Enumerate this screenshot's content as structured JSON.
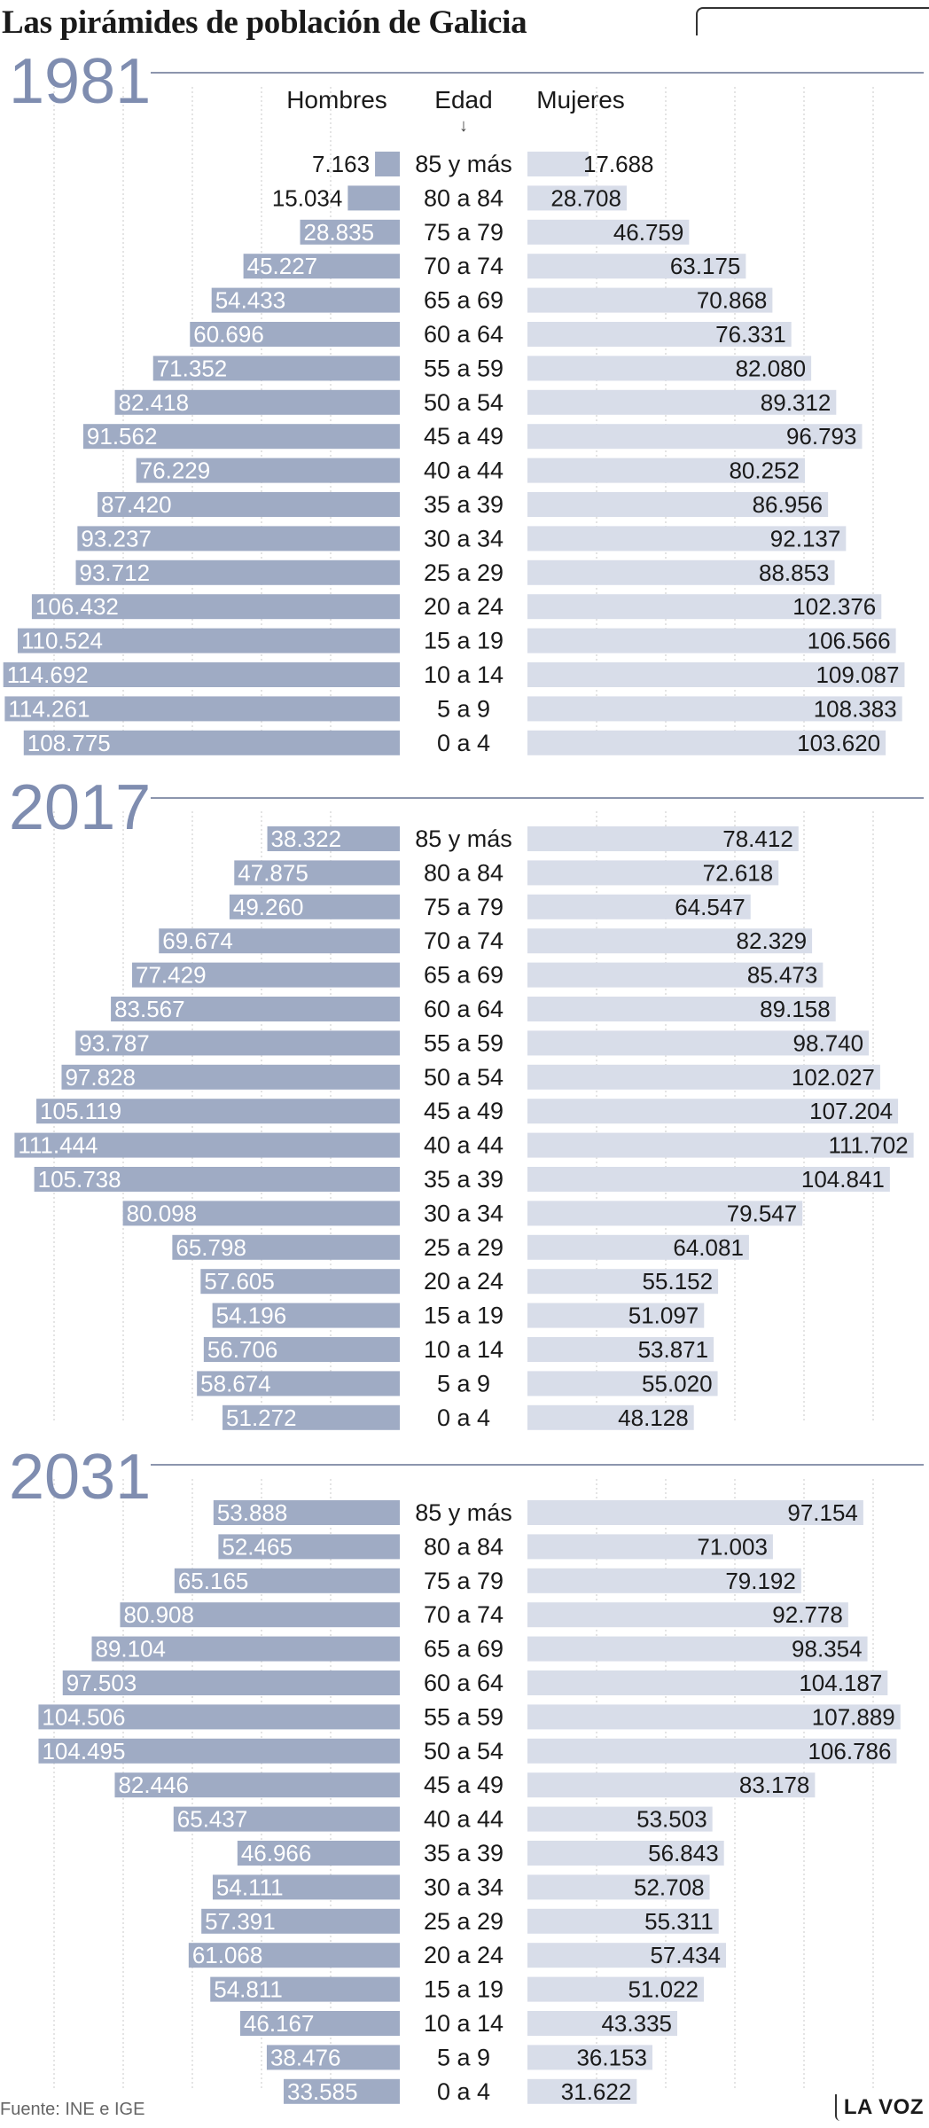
{
  "header": {
    "title": "Las pirámides de población de Galicia"
  },
  "footer": {
    "source": "Fuente: INE e IGE",
    "brand": "LA VOZ"
  },
  "colors": {
    "men": "#9fabc4",
    "women": "#d8dde9",
    "year": "#7f8db0",
    "rule": "#8c95ad"
  },
  "chart_data": {
    "type": "bar",
    "orientation": "horizontal",
    "layout": "population-pyramid",
    "column_headers": {
      "left": "Hombres",
      "center": "Edad",
      "right": "Mujeres"
    },
    "categories": [
      "85 y más",
      "80 a 84",
      "75 a 79",
      "70 a 74",
      "65 a 69",
      "60 a 64",
      "55 a 59",
      "50 a 54",
      "45 a 49",
      "40 a 44",
      "35 a 39",
      "30 a 34",
      "25 a 29",
      "20 a 24",
      "15 a 19",
      "10 a 14",
      "5 a 9",
      "0 a 4"
    ],
    "grid": true,
    "panels": [
      {
        "year": "1981",
        "series": [
          {
            "name": "Hombres",
            "values": [
              "7.163",
              "15.034",
              "28.835",
              "45.227",
              "54.433",
              "60.696",
              "71.352",
              "82.418",
              "91.562",
              "76.229",
              "87.420",
              "93.237",
              "93.712",
              "106.432",
              "110.524",
              "114.692",
              "114.261",
              "108.775"
            ]
          },
          {
            "name": "Mujeres",
            "values": [
              "17.688",
              "28.708",
              "46.759",
              "63.175",
              "70.868",
              "76.331",
              "82.080",
              "89.312",
              "96.793",
              "80.252",
              "86.956",
              "92.137",
              "88.853",
              "102.376",
              "106.566",
              "109.087",
              "108.383",
              "103.620"
            ]
          }
        ]
      },
      {
        "year": "2017",
        "series": [
          {
            "name": "Hombres",
            "values": [
              "38.322",
              "47.875",
              "49.260",
              "69.674",
              "77.429",
              "83.567",
              "93.787",
              "97.828",
              "105.119",
              "111.444",
              "105.738",
              "80.098",
              "65.798",
              "57.605",
              "54.196",
              "56.706",
              "58.674",
              "51.272"
            ]
          },
          {
            "name": "Mujeres",
            "values": [
              "78.412",
              "72.618",
              "64.547",
              "82.329",
              "85.473",
              "89.158",
              "98.740",
              "102.027",
              "107.204",
              "111.702",
              "104.841",
              "79.547",
              "64.081",
              "55.152",
              "51.097",
              "53.871",
              "55.020",
              "48.128"
            ]
          }
        ]
      },
      {
        "year": "2031",
        "series": [
          {
            "name": "Hombres",
            "values": [
              "53.888",
              "52.465",
              "65.165",
              "80.908",
              "89.104",
              "97.503",
              "104.506",
              "104.495",
              "82.446",
              "65.437",
              "46.966",
              "54.111",
              "57.391",
              "61.068",
              "54.811",
              "46.167",
              "38.476",
              "33.585"
            ]
          },
          {
            "name": "Mujeres",
            "values": [
              "97.154",
              "71.003",
              "79.192",
              "92.778",
              "98.354",
              "104.187",
              "107.889",
              "106.786",
              "83.178",
              "53.503",
              "56.843",
              "52.708",
              "55.311",
              "57.434",
              "51.022",
              "43.335",
              "36.153",
              "31.622"
            ]
          }
        ]
      }
    ]
  }
}
